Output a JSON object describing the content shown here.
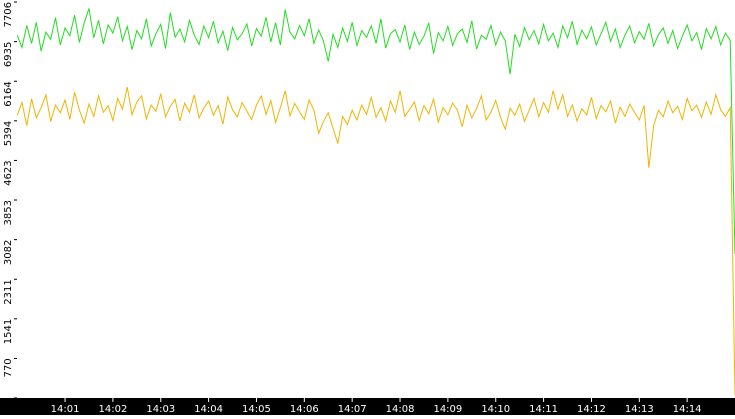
{
  "chart_data": {
    "type": "line",
    "xlim": [
      0,
      15
    ],
    "ylim": [
      0,
      7706
    ],
    "yticks": [
      0,
      770,
      1541,
      2311,
      3082,
      3853,
      4623,
      5394,
      6164,
      6935,
      7706
    ],
    "xticks": [
      {
        "value": 1,
        "label": "14:01"
      },
      {
        "value": 2,
        "label": "14:02"
      },
      {
        "value": 3,
        "label": "14:03"
      },
      {
        "value": 4,
        "label": "14:04"
      },
      {
        "value": 5,
        "label": "14:05"
      },
      {
        "value": 6,
        "label": "14:06"
      },
      {
        "value": 7,
        "label": "14:07"
      },
      {
        "value": 8,
        "label": "14:08"
      },
      {
        "value": 9,
        "label": "14:09"
      },
      {
        "value": 10,
        "label": "14:10"
      },
      {
        "value": 11,
        "label": "14:11"
      },
      {
        "value": 12,
        "label": "14:12"
      },
      {
        "value": 13,
        "label": "14:13"
      },
      {
        "value": 14,
        "label": "14:14"
      }
    ],
    "x": [
      0,
      0.1,
      0.2,
      0.3,
      0.4,
      0.5,
      0.6,
      0.7,
      0.8,
      0.9,
      1,
      1.1,
      1.2,
      1.3,
      1.4,
      1.5,
      1.6,
      1.7,
      1.8,
      1.9,
      2,
      2.1,
      2.2,
      2.3,
      2.4,
      2.5,
      2.6,
      2.7,
      2.8,
      2.9,
      3,
      3.1,
      3.2,
      3.3,
      3.4,
      3.5,
      3.6,
      3.7,
      3.8,
      3.9,
      4,
      4.1,
      4.2,
      4.3,
      4.4,
      4.5,
      4.6,
      4.7,
      4.8,
      4.9,
      5,
      5.1,
      5.2,
      5.3,
      5.4,
      5.5,
      5.6,
      5.7,
      5.8,
      5.9,
      6,
      6.1,
      6.2,
      6.3,
      6.4,
      6.5,
      6.6,
      6.7,
      6.8,
      6.9,
      7,
      7.1,
      7.2,
      7.3,
      7.4,
      7.5,
      7.6,
      7.7,
      7.8,
      7.9,
      8,
      8.1,
      8.2,
      8.3,
      8.4,
      8.5,
      8.6,
      8.7,
      8.8,
      8.9,
      9,
      9.1,
      9.2,
      9.3,
      9.4,
      9.5,
      9.6,
      9.7,
      9.8,
      9.9,
      10,
      10.1,
      10.2,
      10.3,
      10.4,
      10.5,
      10.6,
      10.7,
      10.8,
      10.9,
      11,
      11.1,
      11.2,
      11.3,
      11.4,
      11.5,
      11.6,
      11.7,
      11.8,
      11.9,
      12,
      12.1,
      12.2,
      12.3,
      12.4,
      12.5,
      12.6,
      12.7,
      12.8,
      12.9,
      13,
      13.1,
      13.2,
      13.3,
      13.4,
      13.5,
      13.6,
      13.7,
      13.8,
      13.9,
      14,
      14.1,
      14.2,
      14.3,
      14.4,
      14.5,
      14.6,
      14.7,
      14.8,
      14.9,
      15
    ],
    "series": [
      {
        "color": "#22dd22",
        "values": [
          7060,
          6820,
          7250,
          6900,
          7310,
          6750,
          7120,
          6980,
          7400,
          6870,
          7200,
          7050,
          7450,
          6920,
          7300,
          7580,
          7010,
          7350,
          6890,
          7260,
          7100,
          7420,
          6950,
          7230,
          6780,
          7150,
          6990,
          7380,
          6850,
          7090,
          7270,
          6800,
          7500,
          7020,
          7180,
          6930,
          7350,
          7060,
          6880,
          7240,
          7010,
          7330,
          6910,
          7140,
          6760,
          7210,
          6970,
          7090,
          7280,
          6850,
          7190,
          7040,
          7410,
          6930,
          7300,
          6870,
          7560,
          7120,
          6990,
          7250,
          7050,
          7380,
          6900,
          7160,
          6950,
          6550,
          7080,
          6820,
          7200,
          6940,
          7310,
          6860,
          7150,
          7020,
          7240,
          6900,
          7380,
          6810,
          7090,
          7170,
          6930,
          7260,
          6780,
          7120,
          6880,
          7040,
          7300,
          6700,
          7110,
          6950,
          7230,
          6860,
          7090,
          7180,
          6920,
          7340,
          6790,
          7060,
          6980,
          7250,
          6870,
          7120,
          6950,
          6300,
          7080,
          6840,
          7210,
          6970,
          7150,
          6890,
          7270,
          6950,
          7100,
          6820,
          7240,
          7010,
          7330,
          6880,
          7160,
          6990,
          7220,
          6870,
          7090,
          7310,
          6940,
          7180,
          6820,
          7060,
          7240,
          6910,
          7130,
          6980,
          7290,
          6850,
          7070,
          7200,
          6900,
          7150,
          6800,
          7040,
          7260,
          6950,
          7110,
          6780,
          7190,
          6990,
          7230,
          6870,
          7100,
          6960,
          2800
        ]
      },
      {
        "color": "#f0b400",
        "values": [
          5500,
          5750,
          5300,
          5820,
          5450,
          5650,
          5900,
          5380,
          5700,
          5550,
          5800,
          5420,
          5950,
          5600,
          5350,
          5720,
          5480,
          5880,
          5560,
          5690,
          5400,
          5830,
          5620,
          6050,
          5510,
          5760,
          5880,
          5430,
          5700,
          5580,
          5920,
          5470,
          5680,
          5810,
          5390,
          5740,
          5560,
          5900,
          5450,
          5640,
          5780,
          5500,
          5690,
          5330,
          5860,
          5610,
          5470,
          5750,
          5580,
          5420,
          5700,
          5880,
          5520,
          5790,
          5360,
          5650,
          5980,
          5490,
          5730,
          5570,
          5420,
          5800,
          5600,
          5150,
          5380,
          5550,
          5250,
          4950,
          5480,
          5320,
          5600,
          5410,
          5700,
          5520,
          5850,
          5460,
          5650,
          5390,
          5780,
          5560,
          5980,
          5480,
          5620,
          5760,
          5400,
          5690,
          5530,
          5820,
          5370,
          5650,
          5510,
          5740,
          5600,
          5280,
          5700,
          5450,
          5630,
          5880,
          5410,
          5560,
          5790,
          5460,
          5230,
          5640,
          5500,
          5720,
          5380,
          5600,
          5830,
          5470,
          5750,
          5560,
          5980,
          5620,
          5900,
          5480,
          5700,
          5390,
          5630,
          5510,
          5850,
          5440,
          5690,
          5570,
          5780,
          5350,
          5660,
          5480,
          5720,
          5560,
          5410,
          5690,
          4480,
          5300,
          5600,
          5470,
          5780,
          5550,
          5680,
          5420,
          5830,
          5590,
          5700,
          5460,
          5760,
          5520,
          5900,
          5610,
          5480,
          5650,
          60
        ]
      }
    ]
  }
}
